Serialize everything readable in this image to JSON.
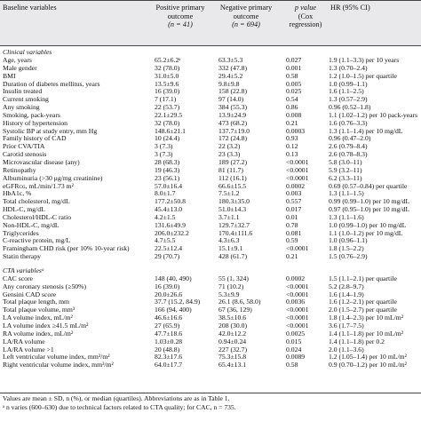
{
  "header": {
    "variables": "Baseline variables",
    "positive": [
      "Positive primary",
      "outcome",
      "(n = 41)"
    ],
    "negative": [
      "Negative primary",
      "outcome",
      "(n = 694)"
    ],
    "pvalue": [
      "p value",
      "(Cox",
      "regression)"
    ],
    "hr": "HR (95% CI)"
  },
  "sections": [
    {
      "title": "Clinical variables",
      "rows": [
        [
          "Age, years",
          "65.2±6.2ᵃ",
          "63.3±5.3",
          "0.027",
          "1.9 (1.1–3.3) per 10 years"
        ],
        [
          "Male gender",
          "32 (78.0)",
          "332 (47.8)",
          "0.001",
          "1.3 (0.70–2.4)"
        ],
        [
          "BMI",
          "31.0±5.0",
          "29.4±5.2",
          "0.58",
          "1.2 (1.0–1.5) per quartile"
        ],
        [
          "Duration of diabetes mellitus, years",
          "13.5±9.6",
          "9.8±9.8",
          "0.005",
          "1.0 (0.99–1.1)"
        ],
        [
          "Insulin treated",
          "16 (39.0)",
          "158 (22.8)",
          "0.025",
          "1.6 (1.1–2.5)"
        ],
        [
          "Current smoking",
          "7 (17.1)",
          "97 (14.0)",
          "0.54",
          "1.3 (0.57–2.9)"
        ],
        [
          "Any smoking",
          "22 (53.7)",
          "384 (55.3)",
          "0.86",
          "0.96 (0.52–1.8)"
        ],
        [
          "Smoking, pack-years",
          "22.1±29.5",
          "13.9±24.9",
          "0.008",
          "1.1 (1.02–1.2) per 10 pack-years"
        ],
        [
          "History of hypertension",
          "32 (78.0)",
          "473 (68.2)",
          "0.21",
          "1.6 (0.76–3.3)"
        ],
        [
          "Systolic BP at study entry, mm Hg",
          "148.6±21.1",
          "137.7±19.0",
          "0.0003",
          "1.3 (1.1–1.4) per 10 mg/dL"
        ],
        [
          "Family history of CAD",
          "10 (24.4)",
          "172 (24.8)",
          "0.93",
          "0.96 (0.47–2.0)"
        ],
        [
          "Prior CVA/TIA",
          "3 (7.3)",
          "22 (3.2)",
          "0.12",
          "2.6 (0.79–8.4)"
        ],
        [
          "Carotid stenosis",
          "3 (7.3)",
          "23 (3.3)",
          "0.13",
          "2.6 (0.78–8.3)"
        ],
        [
          "Microvascular disease (any)",
          "28 (68.3)",
          "189 (27.2)",
          "<0.0001",
          "5.8 (3.0–11)"
        ],
        [
          "Retinopathy",
          "19 (46.3)",
          "81 (11.7)",
          "<0.0001",
          "5.9 (3.2–11)"
        ],
        [
          "Albuminuria (>30 μg/mg creatinine)",
          "23 (56.1)",
          "112 (16.1)",
          "<0.0001",
          "6.2 (3.3–11)"
        ],
        [
          "eGFRᴄɢ, mL/min/1.73 m²",
          "57.0±16.4",
          "66.6±15.5",
          "0.0002",
          "0.69 (0.57–0.84) per quartile"
        ],
        [
          "HbA1c, %",
          "8.0±1.7",
          "7.5±1.2",
          "0.003",
          "1.3 (1.1–1.5)"
        ],
        [
          "Total cholesterol, mg/dL",
          "177.2±50.8",
          "180.3±35.0",
          "0.557",
          "0.99 (0.99–1.0) per 10 mg/dL"
        ],
        [
          "HDL-C, mg/dL",
          "45.4±13.0",
          "51.0±14.3",
          "0.017",
          "0.97 (0.95–1.0) per 10 mg/dL"
        ],
        [
          "Cholesterol/HDL-C ratio",
          "4.2±1.5",
          "3.7±1.1",
          "0.01",
          "1.3 (1.1–1.6)"
        ],
        [
          "Non-HDL-C, mg/dL",
          "131.6±49.9",
          "129.7±32.7",
          "0.78",
          "1.0 (0.99–1.0) per 10 mg/dL"
        ],
        [
          "Triglycerides",
          "206.0±232.2",
          "170.4±111.6",
          "0.081",
          "1.1 (1.0–1.2) per 10 mg/dL"
        ],
        [
          "C-reactive protein, mg/L",
          "4.7±5.5",
          "4.3±6.3",
          "0.59",
          "1.0 (0.96–1.1)"
        ],
        [
          "Framingham CHD risk (per 10% 10-year risk)",
          "22.5±12.4",
          "15.1±9.1",
          "<0.0001",
          "1.8 (1.5–2.2)"
        ],
        [
          "Statin therapy",
          "29 (70.7)",
          "428 (61.7)",
          "0.21",
          "1.5 (0.76–2.9)"
        ]
      ]
    },
    {
      "title": "CTA variablesᵃ",
      "rows": [
        [
          "CAC score",
          "148 (40, 490)",
          "55 (1, 324)",
          "0.0002",
          "1.5 (1.1–2.1) per quartile"
        ],
        [
          "Any coronary stenosis (≥50%)",
          "16 (39.0)",
          "71 (10.2)",
          "<0.0001",
          "5.2 (2.8–9.7)"
        ],
        [
          "Gensini CAD score",
          "20.0±26.6",
          "5.3±9.9",
          "<0.0001",
          "1.6 (1.4–1.9)"
        ],
        [
          "Total plaque length, mm",
          "37.7 (15.2, 84.9)",
          "26.1 (8.6, 58.0)",
          "0.0036",
          "1.6 (1.2–2.1) per quartile"
        ],
        [
          "Total plaque volume, mm³",
          "166 (94, 400)",
          "67 (36, 129)",
          "<0.0001",
          "2.0 (1.5–2.7) per quartile"
        ],
        [
          "LA volume index, mL/m²",
          "46.6±16.6",
          "38.5±10.6",
          "<0.0001",
          "1.8 (1.4–2.3) per 10 mL/m²"
        ],
        [
          "LA volume index ≥41.5 mL/m²",
          "27 (65.9)",
          "208 (30.0)",
          "<0.0001",
          "3.6 (1.7–7.5)"
        ],
        [
          "RA volume index, mL/m²",
          "47.7±18.6",
          "42.0±12.2",
          "0.0025",
          "1.4 (1.1–1.8) per 10 mL/m²"
        ],
        [
          "LA/RA volume",
          "1.03±0.28",
          "0.94±0.24",
          "0.015",
          "1.4 (1.1–1.8) per 0.2"
        ],
        [
          "LA/RA volume >1",
          "20 (48.8)",
          "227 (32.7)",
          "0.024",
          "2.0 (1.1–3.6)"
        ],
        [
          "Left ventricular volume index, mm³/m²",
          "82.3±17.6",
          "75.3±15.8",
          "0.0089",
          "1.2 (1.05–1.4) per 10 mL/m²"
        ],
        [
          "Right ventricular volume index, mm³/m²",
          "64.0±17.7",
          "65.4±13.1",
          "0.58",
          "0.9 (0.70–1.2) per 10 mL/m²"
        ]
      ]
    }
  ],
  "footnotes": [
    "Values are mean ± SD, n (%), or median (quartiles). Abbreviations are as in Table 1.",
    "ᵃ n varies (600–630) due to technical factors related to CTA quality; for CAC, n = 735."
  ]
}
